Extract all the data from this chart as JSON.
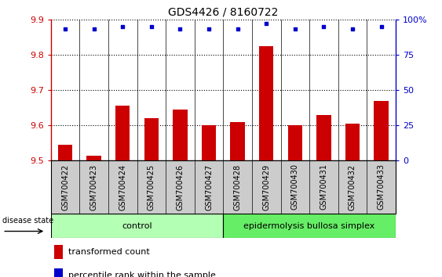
{
  "title": "GDS4426 / 8160722",
  "samples": [
    "GSM700422",
    "GSM700423",
    "GSM700424",
    "GSM700425",
    "GSM700426",
    "GSM700427",
    "GSM700428",
    "GSM700429",
    "GSM700430",
    "GSM700431",
    "GSM700432",
    "GSM700433"
  ],
  "bar_values": [
    9.545,
    9.515,
    9.655,
    9.62,
    9.645,
    9.6,
    9.61,
    9.825,
    9.6,
    9.63,
    9.605,
    9.67
  ],
  "percentile_values": [
    93,
    93,
    95,
    95,
    93,
    93,
    93,
    97,
    93,
    95,
    93,
    95
  ],
  "ylim_left": [
    9.5,
    9.9
  ],
  "ylim_right": [
    0,
    100
  ],
  "yticks_left": [
    9.5,
    9.6,
    9.7,
    9.8,
    9.9
  ],
  "yticks_right": [
    0,
    25,
    50,
    75,
    100
  ],
  "bar_color": "#cc0000",
  "dot_color": "#0000cc",
  "control_samples": 6,
  "control_label": "control",
  "disease_label": "epidermolysis bullosa simplex",
  "group_label": "disease state",
  "legend_bar": "transformed count",
  "legend_dot": "percentile rank within the sample",
  "control_bg": "#b3ffb3",
  "disease_bg": "#66ee66",
  "sample_bg": "#cccccc",
  "title_fontsize": 10,
  "tick_fontsize": 8,
  "label_fontsize": 7,
  "group_fontsize": 8
}
